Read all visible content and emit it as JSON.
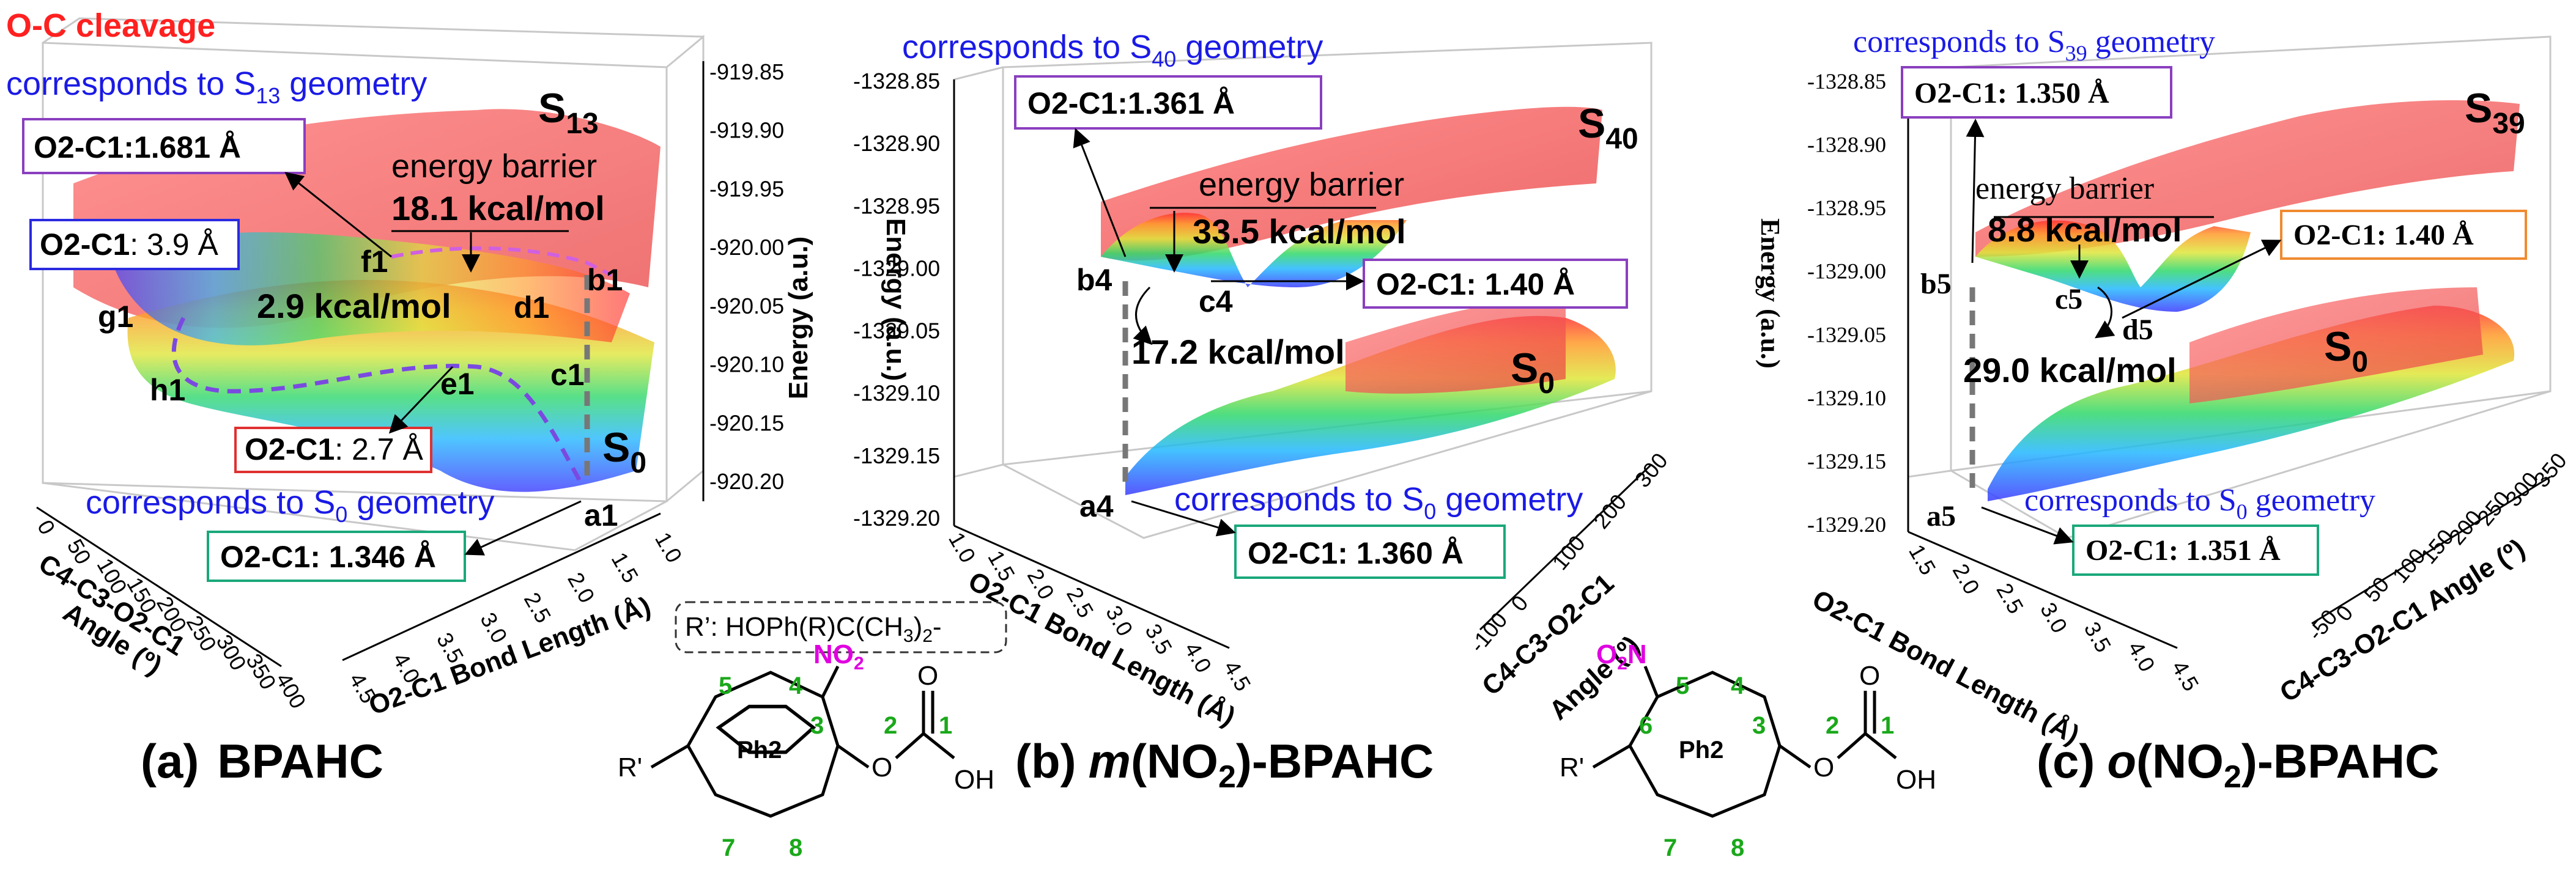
{
  "colors": {
    "title_blue": "#1a1ae6",
    "cleavage_red": "#ff2020",
    "atom_number_green": "#1aa81a",
    "nitro_magenta": "#e000e0",
    "box_purple": "#8a3fbf",
    "box_blue": "#2a2ae0",
    "box_red": "#e03030",
    "box_green": "#1aa87a",
    "box_orange": "#f08a30",
    "surface_excited": "#ff5a5a",
    "dashed_path": "#7a4ae0"
  },
  "panel_a": {
    "cleavage_label": "O-C cleavage",
    "top_geometry_label": "corresponds to S",
    "top_geometry_sub": "13",
    "top_geometry_suffix": " geometry",
    "bottom_geometry_label": "corresponds to S",
    "bottom_geometry_sub": "0",
    "bottom_geometry_suffix": " geometry",
    "box_top": "O2-C1:1.681 Å",
    "box_g1": "O2-C1",
    "box_g1_value": ": 3.9 Å",
    "box_h1": "O2-C1",
    "box_h1_value": ": 2.7 Å",
    "box_a1": "O2-C1: 1.346 Å",
    "energy_barrier_label": "energy barrier",
    "barrier_1": "18.1 kcal/mol",
    "barrier_2": "2.9 kcal/mol",
    "state_upper": "S",
    "state_upper_sub": "13",
    "state_lower": "S",
    "state_lower_sub": "0",
    "points": [
      "f1",
      "g1",
      "d1",
      "b1",
      "h1",
      "e1",
      "c1",
      "a1"
    ],
    "energy_axis_label": "Energy (a.u.)",
    "energy_ticks": [
      "-919.85",
      "-919.90",
      "-919.95",
      "-920.00",
      "-920.05",
      "-920.10",
      "-920.15",
      "-920.20"
    ],
    "angle_axis_label_1": "C4-C3-O2-C1",
    "angle_axis_label_2": "Angle (º)",
    "angle_ticks": [
      "0",
      "50",
      "100",
      "150",
      "200",
      "250",
      "300",
      "350",
      "400"
    ],
    "bond_axis_label": "O2-C1 Bond Length (Å)",
    "bond_ticks": [
      "4.5",
      "4.0",
      "3.5",
      "3.0",
      "2.5",
      "2.0",
      "1.5",
      "1.0"
    ],
    "caption_letter": "(a)",
    "caption_name": "BPAHC"
  },
  "panel_b": {
    "top_geometry_label": "corresponds to S",
    "top_geometry_sub": "40",
    "top_geometry_suffix": " geometry",
    "bottom_geometry_label": "corresponds to S",
    "bottom_geometry_sub": "0",
    "bottom_geometry_suffix": " geometry",
    "box_top": "O2-C1:1.361 Å",
    "box_c4": "O2-C1: 1.40 Å",
    "box_a4": "O2-C1: 1.360 Å",
    "energy_barrier_label": "energy barrier",
    "barrier_1": "33.5 kcal/mol",
    "barrier_2": "17.2 kcal/mol",
    "state_upper": "S",
    "state_upper_sub": "40",
    "state_lower": "S",
    "state_lower_sub": "0",
    "points": [
      "b4",
      "c4",
      "a4"
    ],
    "energy_axis_label": "Energy (a.u.)",
    "energy_ticks": [
      "-1328.85",
      "-1328.90",
      "-1328.95",
      "-1329.00",
      "-1329.05",
      "-1329.10",
      "-1329.15",
      "-1329.20"
    ],
    "bond_axis_label": "O2-C1 Bond Length (Å)",
    "bond_ticks": [
      "1.0",
      "1.5",
      "2.0",
      "2.5",
      "3.0",
      "3.5",
      "4.0",
      "4.5"
    ],
    "angle_axis_label_1": "C4-C3-O2-C1",
    "angle_axis_label_2": "Angle (º)",
    "angle_ticks": [
      "-100",
      "0",
      "100",
      "200",
      "300"
    ],
    "caption_letter": "(b)",
    "caption_prefix": "m",
    "caption_mid": "(NO",
    "caption_sub": "2",
    "caption_suffix": ")-BPAHC"
  },
  "panel_c": {
    "top_geometry_label": "corresponds to S",
    "top_geometry_sub": "39",
    "top_geometry_suffix": " geometry",
    "bottom_geometry_label": "corresponds to S",
    "bottom_geometry_sub": "0",
    "bottom_geometry_suffix": " geometry",
    "box_top": "O2-C1: 1.350 Å",
    "box_d5": "O2-C1: 1.40 Å",
    "box_a5": "O2-C1: 1.351 Å",
    "energy_barrier_label": "energy barrier",
    "barrier_1": "8.8 kcal/mol",
    "barrier_2": "29.0 kcal/mol",
    "state_upper": "S",
    "state_upper_sub": "39",
    "state_lower": "S",
    "state_lower_sub": "0",
    "points": [
      "b5",
      "c5",
      "d5",
      "a5"
    ],
    "energy_axis_label": "Energy (a.u.)",
    "energy_ticks": [
      "-1328.85",
      "-1328.90",
      "-1328.95",
      "-1329.00",
      "-1329.05",
      "-1329.10",
      "-1329.15",
      "-1329.20"
    ],
    "bond_axis_label": "O2-C1 Bond Length (Å)",
    "bond_ticks": [
      "1.5",
      "2.0",
      "2.5",
      "3.0",
      "3.5",
      "4.0",
      "4.5"
    ],
    "angle_axis_label_1": "C4-C3-O2-C1 Angle (º)",
    "angle_ticks": [
      "-50",
      "0",
      "50",
      "100",
      "150",
      "200",
      "250",
      "300",
      "350"
    ],
    "caption_letter": "(c)",
    "caption_prefix": "o",
    "caption_mid": "(NO",
    "caption_sub": "2",
    "caption_suffix": ")-BPAHC"
  },
  "structures": {
    "r_prime_definition": "R’: HOPh(R)C(CH",
    "r_prime_sub": "3",
    "r_prime_suffix": ")",
    "r_prime_sub2": "2",
    "r_prime_end": "-",
    "meta": {
      "substituent": "R'",
      "ring": "Ph2",
      "nitro": "NO",
      "nitro_sub": "2",
      "oxygen_ether": "O",
      "carbonyl_oxygen": "O",
      "hydroxyl": "OH",
      "atom_numbers": [
        "5",
        "4",
        "3",
        "2",
        "1",
        "7",
        "8"
      ]
    },
    "ortho": {
      "substituent": "R'",
      "ring": "Ph2",
      "nitro": "O",
      "nitro_sub": "2",
      "nitro_n": "N",
      "oxygen_ether": "O",
      "carbonyl_oxygen": "O",
      "hydroxyl": "OH",
      "atom_numbers": [
        "5",
        "4",
        "6",
        "3",
        "2",
        "1",
        "7",
        "8"
      ]
    }
  }
}
